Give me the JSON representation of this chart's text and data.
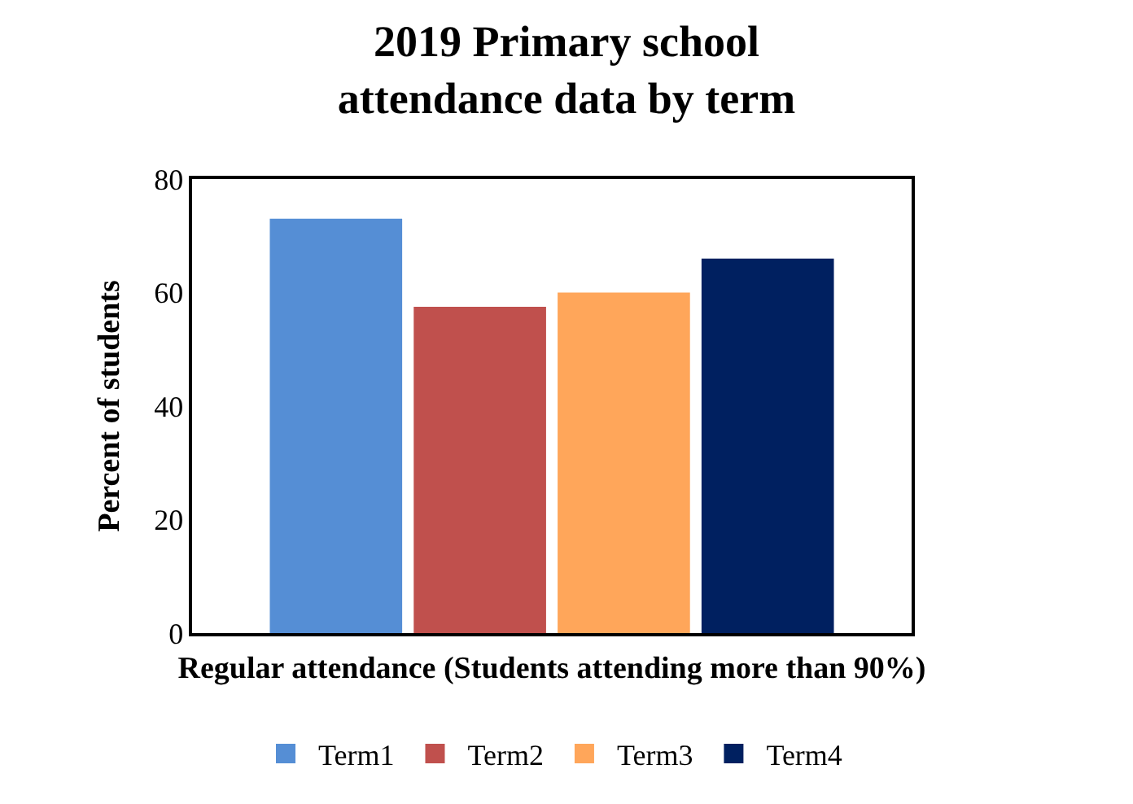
{
  "chart_data": {
    "type": "bar",
    "title": "2019 Primary school attendance data by term",
    "xlabel": "Regular attendance (Students attending more than 90%)",
    "ylabel": "Percent of students",
    "categories": [
      null
    ],
    "series": [
      {
        "name": "Term1",
        "color": "#558ed5",
        "values": [
          73
        ]
      },
      {
        "name": "Term2",
        "color": "#c0504d",
        "values": [
          57.5
        ]
      },
      {
        "name": "Term3",
        "color": "#ffa65a",
        "values": [
          60
        ]
      },
      {
        "name": "Term4",
        "color": "#002060",
        "values": [
          66
        ]
      }
    ],
    "ylim": [
      0,
      80
    ],
    "yticks": [
      0,
      20,
      40,
      60,
      80
    ],
    "grid": false,
    "legend": "bottom"
  }
}
